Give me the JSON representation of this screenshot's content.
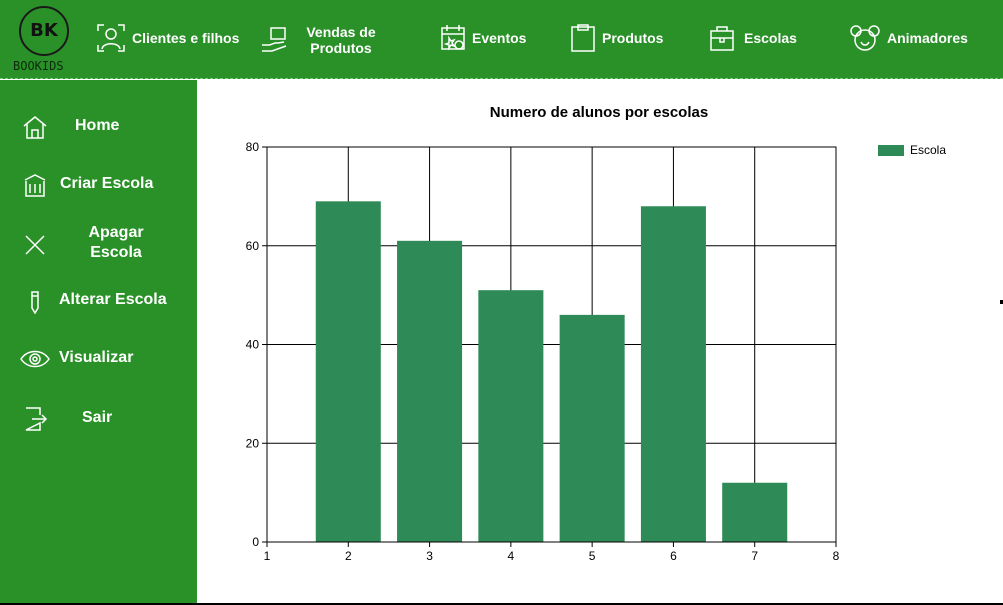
{
  "logo": {
    "mark": "BK",
    "text": "BOOKIDS"
  },
  "topnav": [
    {
      "label": "Clientes e filhos",
      "icon": "person-scan-icon"
    },
    {
      "label": "Vendas de Produtos",
      "icon": "hand-box-icon"
    },
    {
      "label": "Eventos",
      "icon": "calendar-star-icon"
    },
    {
      "label": "Produtos",
      "icon": "clipboard-icon"
    },
    {
      "label": "Escolas",
      "icon": "school-bag-icon"
    },
    {
      "label": "Animadores",
      "icon": "mouse-face-icon"
    }
  ],
  "sidebar": [
    {
      "label": "Home",
      "icon": "house-icon"
    },
    {
      "label": "Criar Escola",
      "icon": "building-icon"
    },
    {
      "label": "Apagar Escola",
      "icon": "x-icon"
    },
    {
      "label": "Alterar Escola",
      "icon": "pencil-icon"
    },
    {
      "label": "Visualizar",
      "icon": "eye-icon"
    },
    {
      "label": "Sair",
      "icon": "exit-door-icon"
    }
  ],
  "colors": {
    "green": "#2a9128",
    "bar": "#2e8b57"
  },
  "chart_data": {
    "type": "bar",
    "title": "Numero de alunos por escolas",
    "x": [
      2,
      3,
      4,
      5,
      6,
      7
    ],
    "series": [
      {
        "name": "Escola",
        "values": [
          69,
          61,
          51,
          46,
          68,
          12
        ]
      }
    ],
    "xlim": [
      1,
      8
    ],
    "ylim": [
      0,
      80
    ],
    "xticks": [
      1,
      2,
      3,
      4,
      5,
      6,
      7,
      8
    ],
    "yticks": [
      0,
      20,
      40,
      60,
      80
    ],
    "grid": true,
    "legend": "top-right"
  }
}
